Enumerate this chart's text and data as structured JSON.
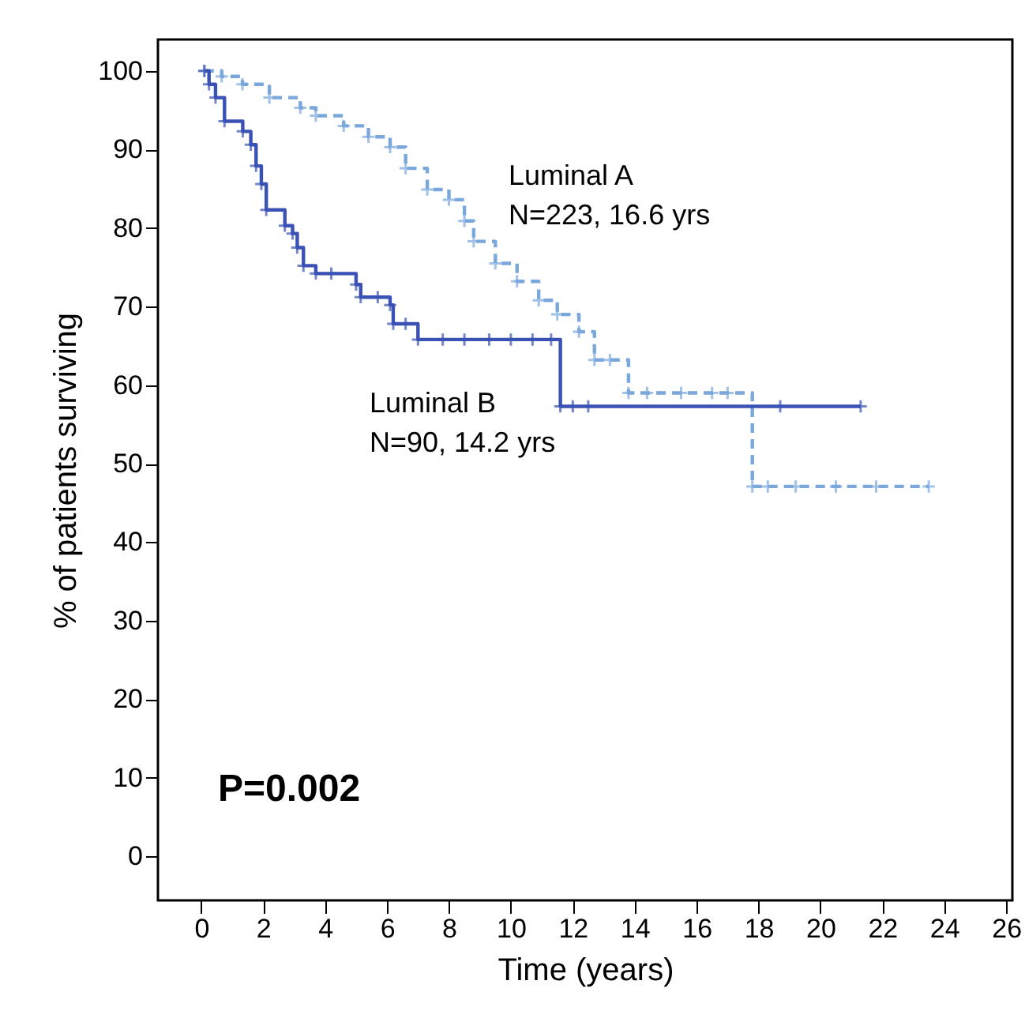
{
  "chart_data": {
    "type": "step",
    "xlabel": "Time (years)",
    "ylabel": "% of patients surviving",
    "xlim": [
      -1.4,
      26.2
    ],
    "xticks": [
      0,
      2,
      4,
      6,
      8,
      10,
      12,
      14,
      16,
      18,
      20,
      22,
      24,
      26
    ],
    "ylim": [
      -5.6,
      104
    ],
    "yticks": [
      0,
      10,
      20,
      30,
      40,
      50,
      60,
      70,
      80,
      90,
      100
    ],
    "grid": false,
    "marker": "cross",
    "series": [
      {
        "name": "Luminal A",
        "color": "#7aa7dc",
        "line_style": "dashed",
        "x": [
          0.1,
          0.66,
          1.33,
          2.2,
          3.2,
          3.7,
          4.6,
          5.4,
          6.1,
          6.6,
          7.3,
          8.0,
          8.5,
          8.8,
          9.5,
          10.2,
          10.9,
          11.5,
          12.2,
          12.7,
          13.2,
          13.8,
          14.4,
          15.5,
          16.5,
          17.0,
          17.8,
          18.3,
          19.2,
          20.5,
          21.8,
          23.5
        ],
        "values": [
          100,
          99.3,
          98.3,
          96.6,
          95.3,
          94.3,
          93,
          91.6,
          90.3,
          87.6,
          84.9,
          83.6,
          80.9,
          78.3,
          75.5,
          73.2,
          70.8,
          69,
          66.8,
          63.2,
          63.2,
          59,
          59,
          59,
          59,
          59,
          47.1,
          47.1,
          47.1,
          47.1,
          47.1,
          47.1
        ]
      },
      {
        "name": "Luminal B",
        "color": "#3a52b5",
        "line_style": "solid",
        "x": [
          0.1,
          0.25,
          0.46,
          0.75,
          1.34,
          1.6,
          1.77,
          1.94,
          2.1,
          2.7,
          2.95,
          3.1,
          3.3,
          3.7,
          4.2,
          5.0,
          5.15,
          5.7,
          6.1,
          6.2,
          6.6,
          7.0,
          7.8,
          8.5,
          9.3,
          10.0,
          10.7,
          11.3,
          11.6,
          12.0,
          12.5,
          18.7,
          21.3
        ],
        "values": [
          100,
          98.3,
          96.6,
          93.6,
          92.3,
          90.6,
          87.9,
          85.6,
          82.3,
          80.3,
          79.3,
          77.5,
          75.2,
          74.2,
          74.2,
          72.8,
          71.2,
          71.2,
          70.2,
          67.8,
          67.8,
          65.8,
          65.8,
          65.8,
          65.8,
          65.8,
          65.8,
          65.8,
          57.3,
          57.3,
          57.3,
          57.3,
          57.3
        ]
      }
    ],
    "annotations": [
      "N=223, 16.6 yrs",
      "N=90, 14.2 yrs",
      "P=0.002"
    ]
  }
}
